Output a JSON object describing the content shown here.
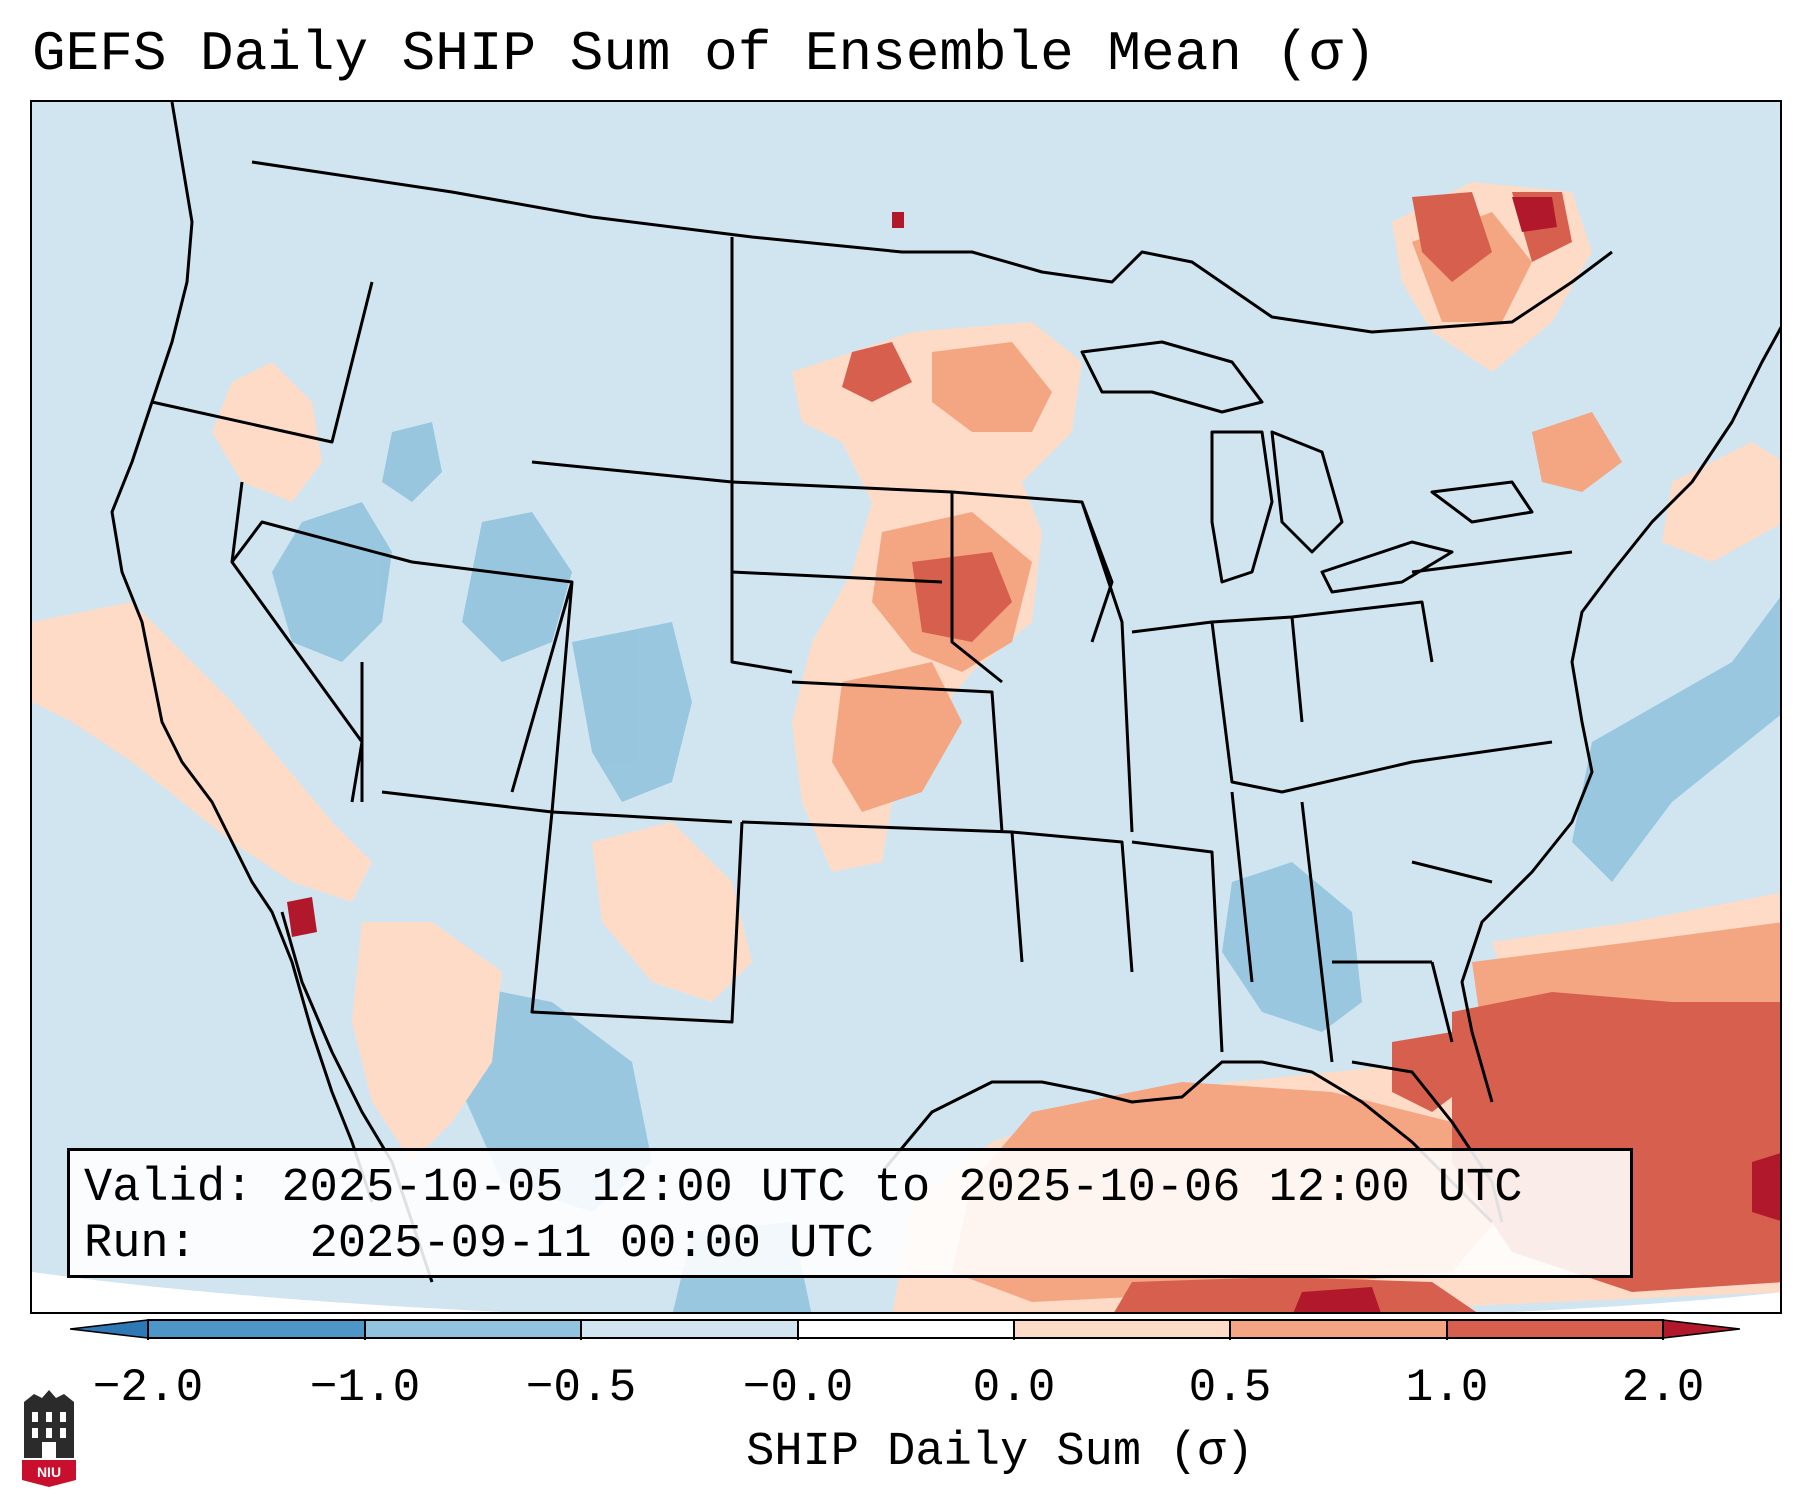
{
  "title": "GEFS Daily SHIP Sum of Ensemble Mean (σ)",
  "info": {
    "valid_label": "Valid:",
    "valid_value": "2025-10-05 12:00 UTC to 2025-10-06 12:00 UTC",
    "run_label": "Run:",
    "run_value": "2025-09-11 00:00 UTC"
  },
  "colorbar": {
    "label": "SHIP Daily Sum (σ)",
    "ticks": [
      "−2.0",
      "−1.0",
      "−0.5",
      "−0.0",
      "0.0",
      "0.5",
      "1.0",
      "2.0"
    ],
    "colors": [
      "#2f78b6",
      "#4e96c8",
      "#92c3de",
      "#d1e5f0",
      "#fddbc7",
      "#f4a582",
      "#d6604d",
      "#b2182b"
    ]
  },
  "logo": {
    "text": "NIU",
    "color": "#c8102e"
  },
  "map": {
    "background_color": "#d1e5f0",
    "border_color": "#000000"
  }
}
